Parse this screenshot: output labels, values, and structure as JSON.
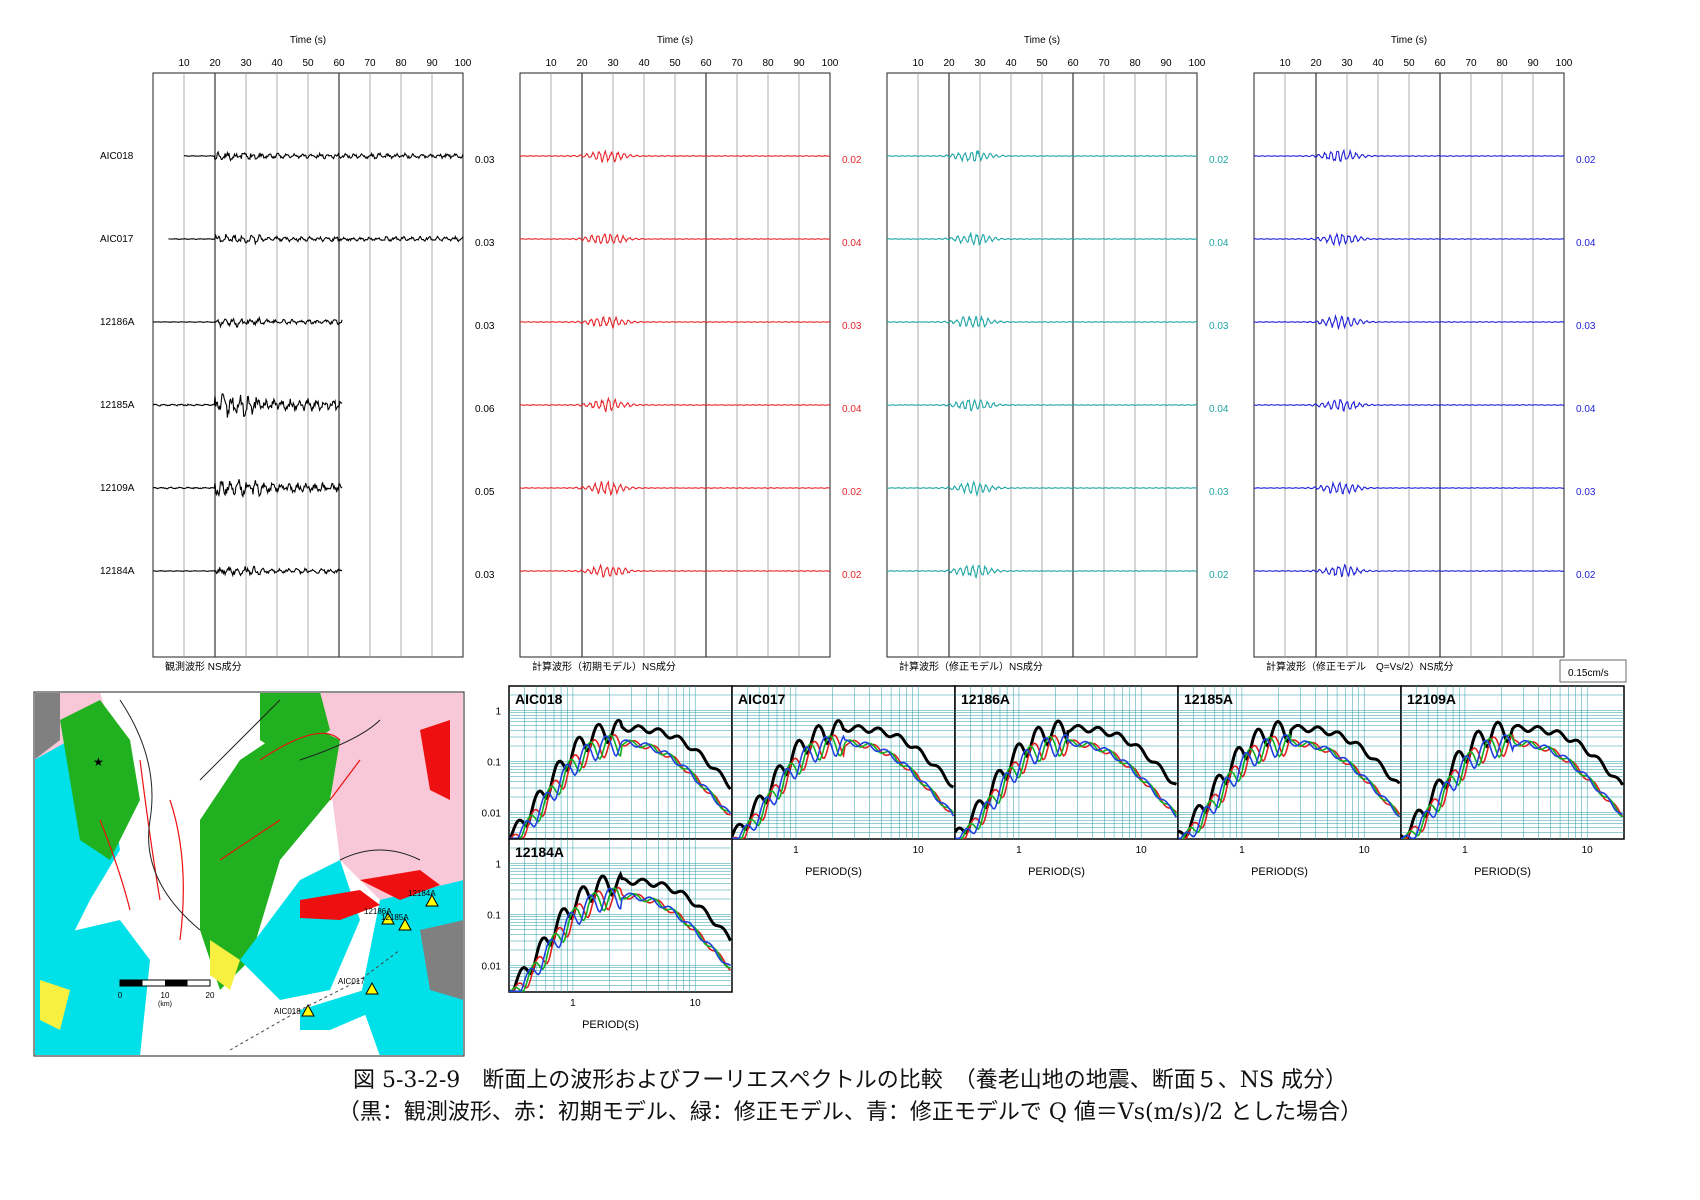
{
  "colors": {
    "observed": "#000000",
    "initial": "#e8262b",
    "modified": "#1fa5a5",
    "modified_q": "#2020d8",
    "spec_red": "#e02020",
    "spec_green": "#10b020",
    "spec_blue": "#2040e0",
    "spec_grid": "#2a9ea8",
    "map_green": "#20b020",
    "map_cyan": "#00e0e8",
    "map_pink": "#f8c8d8",
    "map_red": "#ee1010",
    "map_gray": "#808080",
    "map_yellow": "#f8f040"
  },
  "waveform_panels": {
    "time_axis_label": "Time (s)",
    "time_ticks": [
      10,
      20,
      30,
      40,
      50,
      60,
      70,
      80,
      90,
      100
    ],
    "stations": [
      "AIC018",
      "AIC017",
      "12186A",
      "12185A",
      "12109A",
      "12184A"
    ],
    "panels": [
      {
        "label": "観測波形 NS成分",
        "series": "observed",
        "peaks": [
          "0.03",
          "0.03",
          "0.03",
          "0.06",
          "0.05",
          "0.03"
        ]
      },
      {
        "label": "計算波形（初期モデル）NS成分",
        "series": "initial",
        "peaks": [
          "0.02",
          "0.04",
          "0.03",
          "0.04",
          "0.02",
          "0.02"
        ]
      },
      {
        "label": "計算波形（修正モデル）NS成分",
        "series": "modified",
        "peaks": [
          "0.02",
          "0.04",
          "0.03",
          "0.04",
          "0.03",
          "0.02"
        ]
      },
      {
        "label": "計算波形（修正モデル　Q=Vs/2）NS成分",
        "series": "modified_q",
        "peaks": [
          "0.02",
          "0.04",
          "0.03",
          "0.04",
          "0.03",
          "0.02"
        ]
      }
    ],
    "scale_label": "0.15cm/s"
  },
  "chart_data": {
    "type": "line",
    "x_scale": "log",
    "y_scale": "log",
    "xlabel": "PERIOD(S)",
    "x_tick_labels": [
      "1",
      "10"
    ],
    "y_tick_labels": [
      "1",
      "0.1",
      "0.01"
    ],
    "series": [
      {
        "name": "観測波形",
        "color": "#000000"
      },
      {
        "name": "初期モデル",
        "color": "#e02020"
      },
      {
        "name": "修正モデル",
        "color": "#10b020"
      },
      {
        "name": "修正モデルでQ値＝Vs(m/s)/2",
        "color": "#2040e0"
      }
    ],
    "panels": [
      "AIC018",
      "AIC017",
      "12186A",
      "12185A",
      "12109A",
      "12184A"
    ]
  },
  "map": {
    "scale_labels": [
      "0",
      "10",
      "20"
    ],
    "scale_unit": "(km)",
    "stations": [
      "AIC018",
      "AIC017",
      "12186A",
      "12185A",
      "12184A"
    ]
  },
  "caption": {
    "line1": "図 5-3-2-9　断面上の波形およびフーリエスペクトルの比較　（養老山地の地震、断面５、NS 成分）",
    "line2": "（黒：観測波形、赤：初期モデル、緑：修正モデル、青：修正モデルで Q 値＝Vs(m/s)/2 とした場合）"
  }
}
